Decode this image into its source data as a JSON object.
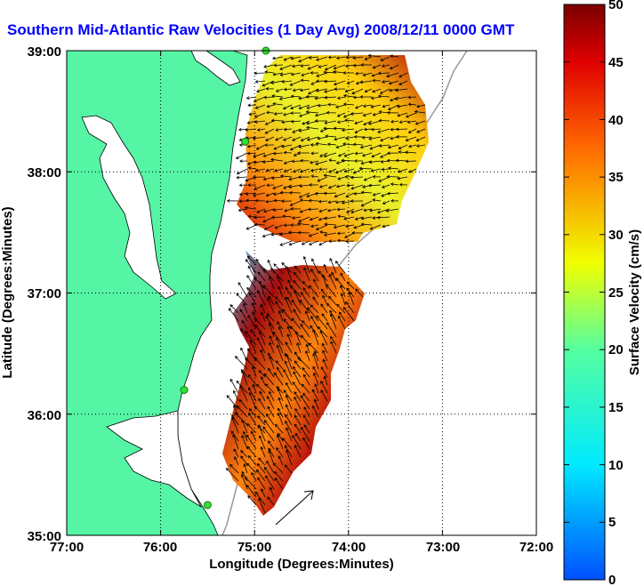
{
  "title": "Southern Mid-Atlantic Raw Velocities (1 Day Avg) 2008/12/11 0000 GMT",
  "x_axis": {
    "label": "Longitude (Degrees:Minutes)",
    "ticks": [
      "77:00",
      "76:00",
      "75:00",
      "74:00",
      "73:00",
      "72:00"
    ]
  },
  "y_axis": {
    "label": "Latitude (Degrees:Minutes)",
    "ticks": [
      "39:00",
      "38:00",
      "37:00",
      "36:00",
      "35:00"
    ]
  },
  "colorbar": {
    "label": "Surface Velocity (cm/s)",
    "ticks": [
      "50",
      "45",
      "40",
      "35",
      "30",
      "25",
      "20",
      "15",
      "10",
      "5",
      "0"
    ],
    "min": 0,
    "max": 50
  },
  "colors": {
    "land": "#55f5a5",
    "title": "#0000ff",
    "station": "#33dd33"
  },
  "extent": {
    "lon": [
      -77,
      -72
    ],
    "lat": [
      35,
      39
    ]
  },
  "stations": [
    {
      "lon": -74.88,
      "lat": 39.0
    },
    {
      "lon": -75.1,
      "lat": 38.25
    },
    {
      "lon": -75.75,
      "lat": 36.2
    },
    {
      "lon": -75.5,
      "lat": 35.25
    }
  ],
  "regions": [
    {
      "name": "north",
      "speed": 28
    },
    {
      "name": "south",
      "speed": 32
    }
  ]
}
